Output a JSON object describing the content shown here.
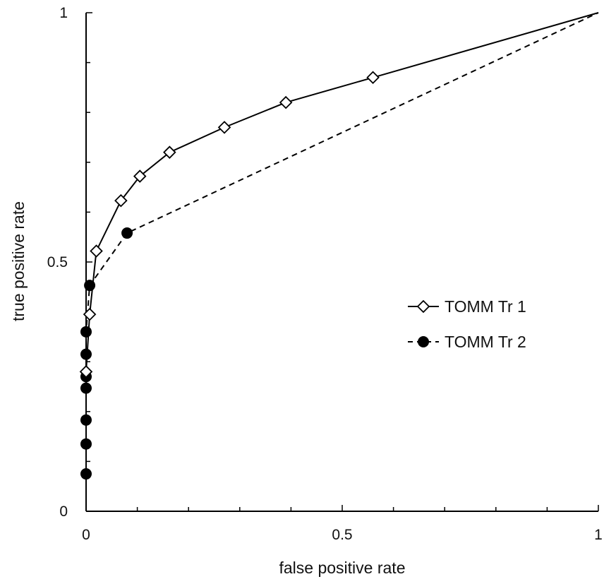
{
  "chart_data": {
    "type": "line",
    "xlabel": "false positive rate",
    "ylabel": "true positive rate",
    "xlim": [
      0,
      1
    ],
    "ylim": [
      0,
      1
    ],
    "x_ticks": [
      0,
      0.5,
      1
    ],
    "y_ticks": [
      0,
      0.5,
      1
    ],
    "x_tick_labels": [
      "0",
      "0.5",
      "1"
    ],
    "y_tick_labels": [
      "0",
      "0.5",
      "1"
    ],
    "minor_tick_step": 0.1,
    "grid": false,
    "legend_position": "right-middle",
    "series": [
      {
        "name": "TOMM Tr 1",
        "line_style": "solid",
        "marker": "open-diamond",
        "color": "#000000",
        "points": [
          [
            0,
            0.28
          ],
          [
            0.007,
            0.395
          ],
          [
            0.02,
            0.522
          ],
          [
            0.068,
            0.623
          ],
          [
            0.105,
            0.672
          ],
          [
            0.163,
            0.72
          ],
          [
            0.27,
            0.77
          ],
          [
            0.39,
            0.82
          ],
          [
            0.56,
            0.87
          ],
          [
            1.0,
            1.0
          ]
        ]
      },
      {
        "name": "TOMM Tr 2",
        "line_style": "dashed",
        "marker": "filled-circle",
        "color": "#000000",
        "points": [
          [
            0,
            0.075
          ],
          [
            0,
            0.135
          ],
          [
            0,
            0.183
          ],
          [
            0,
            0.247
          ],
          [
            0,
            0.27
          ],
          [
            0,
            0.315
          ],
          [
            0,
            0.36
          ],
          [
            0.007,
            0.453
          ],
          [
            0.08,
            0.558
          ],
          [
            1.0,
            1.0
          ]
        ]
      }
    ]
  }
}
